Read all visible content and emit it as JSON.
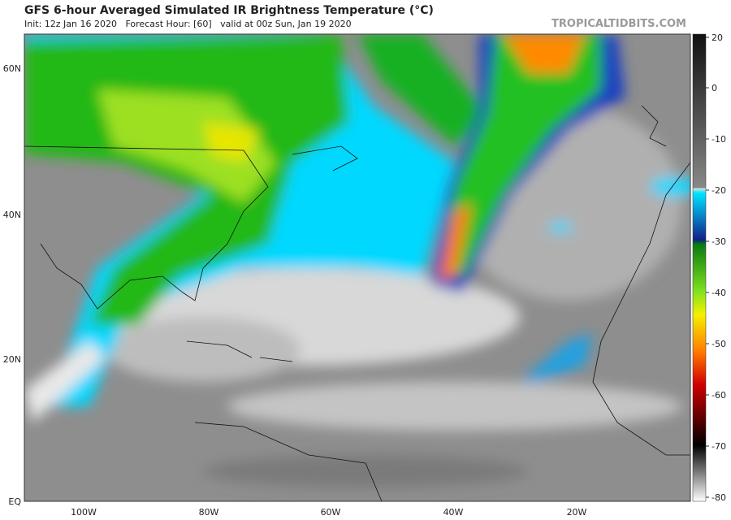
{
  "header": {
    "title": "GFS 6-hour Averaged Simulated IR Brightness Temperature (°C)",
    "subtitle": "Init: 12z Jan 16 2020   Forecast Hour: [60]   valid at 00z Sun, Jan 19 2020",
    "watermark": "TROPICALTIDBITS.COM"
  },
  "map": {
    "lat_labels": [
      "60N",
      "40N",
      "20N",
      "EQ"
    ],
    "lon_labels": [
      "100W",
      "80W",
      "60W",
      "40W",
      "20W"
    ]
  },
  "colorbar": {
    "ticks": [
      20,
      0,
      -10,
      -20,
      -30,
      -40,
      -50,
      -60,
      -70,
      -80
    ]
  }
}
